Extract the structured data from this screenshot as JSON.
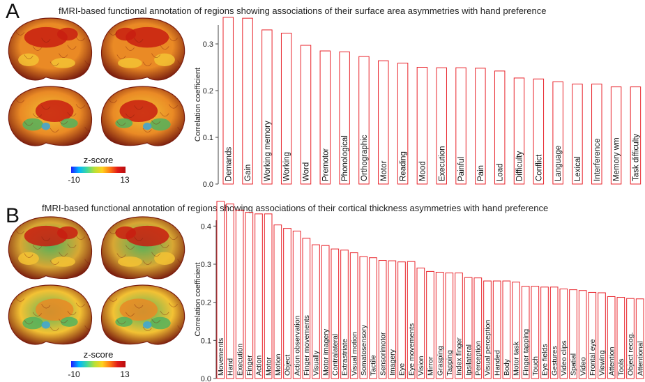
{
  "colorbar": {
    "label": "z-score",
    "min": "-10",
    "max": "13",
    "stops": [
      "#1d1dff",
      "#00b4ff",
      "#3ed8a0",
      "#b8e036",
      "#ffd21e",
      "#ff7a14",
      "#e01818",
      "#b80f0f"
    ]
  },
  "brain_colors": {
    "outline": "#7a1d0e",
    "base_a": "#ea8a25",
    "base_b": "#d8a733",
    "hot": "#c81d10",
    "warm": "#f3c234",
    "cool": "#53b15c",
    "cold": "#3aa6d8"
  },
  "chart_data": [
    {
      "panel": "A",
      "type": "bar",
      "title": "fMRI-based functional annotation of regions showing associations of their surface area asymmetries with hand preference",
      "ylabel": "Correlation coefficient",
      "ylim": [
        0,
        0.35
      ],
      "yticks": [
        "0.0",
        "0.1",
        "0.2",
        "0.3"
      ],
      "bar_color": "#e8232a",
      "categories": [
        "Demands",
        "Gain",
        "Working memory",
        "Working",
        "Word",
        "Premotor",
        "Phonological",
        "Orthographic",
        "Motor",
        "Reading",
        "Mood",
        "Execution",
        "Painful",
        "Pain",
        "Load",
        "Difficulty",
        "Conflict",
        "Language",
        "Lexical",
        "Interference",
        "Memory wm",
        "Task difficulty"
      ],
      "values": [
        0.357,
        0.355,
        0.33,
        0.323,
        0.297,
        0.285,
        0.283,
        0.273,
        0.264,
        0.259,
        0.25,
        0.249,
        0.249,
        0.248,
        0.242,
        0.227,
        0.225,
        0.219,
        0.214,
        0.214,
        0.208,
        0.208
      ]
    },
    {
      "panel": "B",
      "type": "bar",
      "title": "fMRI-based functional annotation of regions showing associations of their cortical thickness asymmetries with hand preference",
      "ylabel": "Correlation coefficient",
      "ylim": [
        0,
        0.45
      ],
      "yticks": [
        "0.0",
        "0.1",
        "0.2",
        "0.3",
        "0.4"
      ],
      "bar_color": "#e8232a",
      "categories": [
        "Movements",
        "Hand",
        "Execution",
        "Finger",
        "Action",
        "Motor",
        "Motion",
        "Object",
        "Action observation",
        "Finger movements",
        "Visually",
        "Motor imagery",
        "Contralateral",
        "Extrastriate",
        "Visual motion",
        "Somatosensory",
        "Tactile",
        "Sensorimotor",
        "Imagery",
        "Eye",
        "Eye movements",
        "Vision",
        "Mirror",
        "Grasping",
        "Tapping",
        "Index finger",
        "Ipsilateral",
        "Perception",
        "Visual perception",
        "Handed",
        "Body",
        "Motor task",
        "Finger tapping",
        "Touch",
        "Eye fields",
        "Gestures",
        "Video clips",
        "Spatial",
        "Video",
        "Frontal eye",
        "Viewing",
        "Attention",
        "Tools",
        "Object recog.",
        "Attentional"
      ],
      "values": [
        0.465,
        0.458,
        0.442,
        0.436,
        0.432,
        0.432,
        0.403,
        0.394,
        0.387,
        0.368,
        0.351,
        0.349,
        0.34,
        0.337,
        0.33,
        0.32,
        0.317,
        0.31,
        0.309,
        0.306,
        0.307,
        0.29,
        0.281,
        0.279,
        0.277,
        0.277,
        0.265,
        0.264,
        0.256,
        0.256,
        0.256,
        0.253,
        0.242,
        0.242,
        0.24,
        0.24,
        0.235,
        0.233,
        0.231,
        0.226,
        0.225,
        0.215,
        0.213,
        0.21,
        0.209
      ]
    }
  ]
}
